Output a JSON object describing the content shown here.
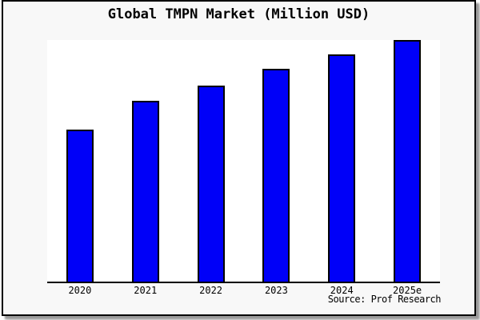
{
  "title": "Global TMPN Market (Million USD)",
  "source_note": "Source: Prof Research",
  "frame": {
    "card_background": "#f8f8f8",
    "plot_background": "#ffffff",
    "border_color": "#000000"
  },
  "chart_data": {
    "type": "bar",
    "title": "Global TMPN Market (Million USD)",
    "categories": [
      "2020",
      "2021",
      "2022",
      "2023",
      "2024",
      "2025e"
    ],
    "values": [
      63,
      75,
      81,
      88,
      94,
      100
    ],
    "value_scale": "percent of tallest bar (chart shows no y-axis tick labels)",
    "unit": "Million USD",
    "xlabel": "",
    "ylabel": "",
    "ylim": [
      0,
      100
    ],
    "grid": false,
    "legend": false,
    "bar_color": "#0000F8",
    "bar_border_color": "#000000",
    "annotations": [
      "Source: Prof Research"
    ]
  }
}
